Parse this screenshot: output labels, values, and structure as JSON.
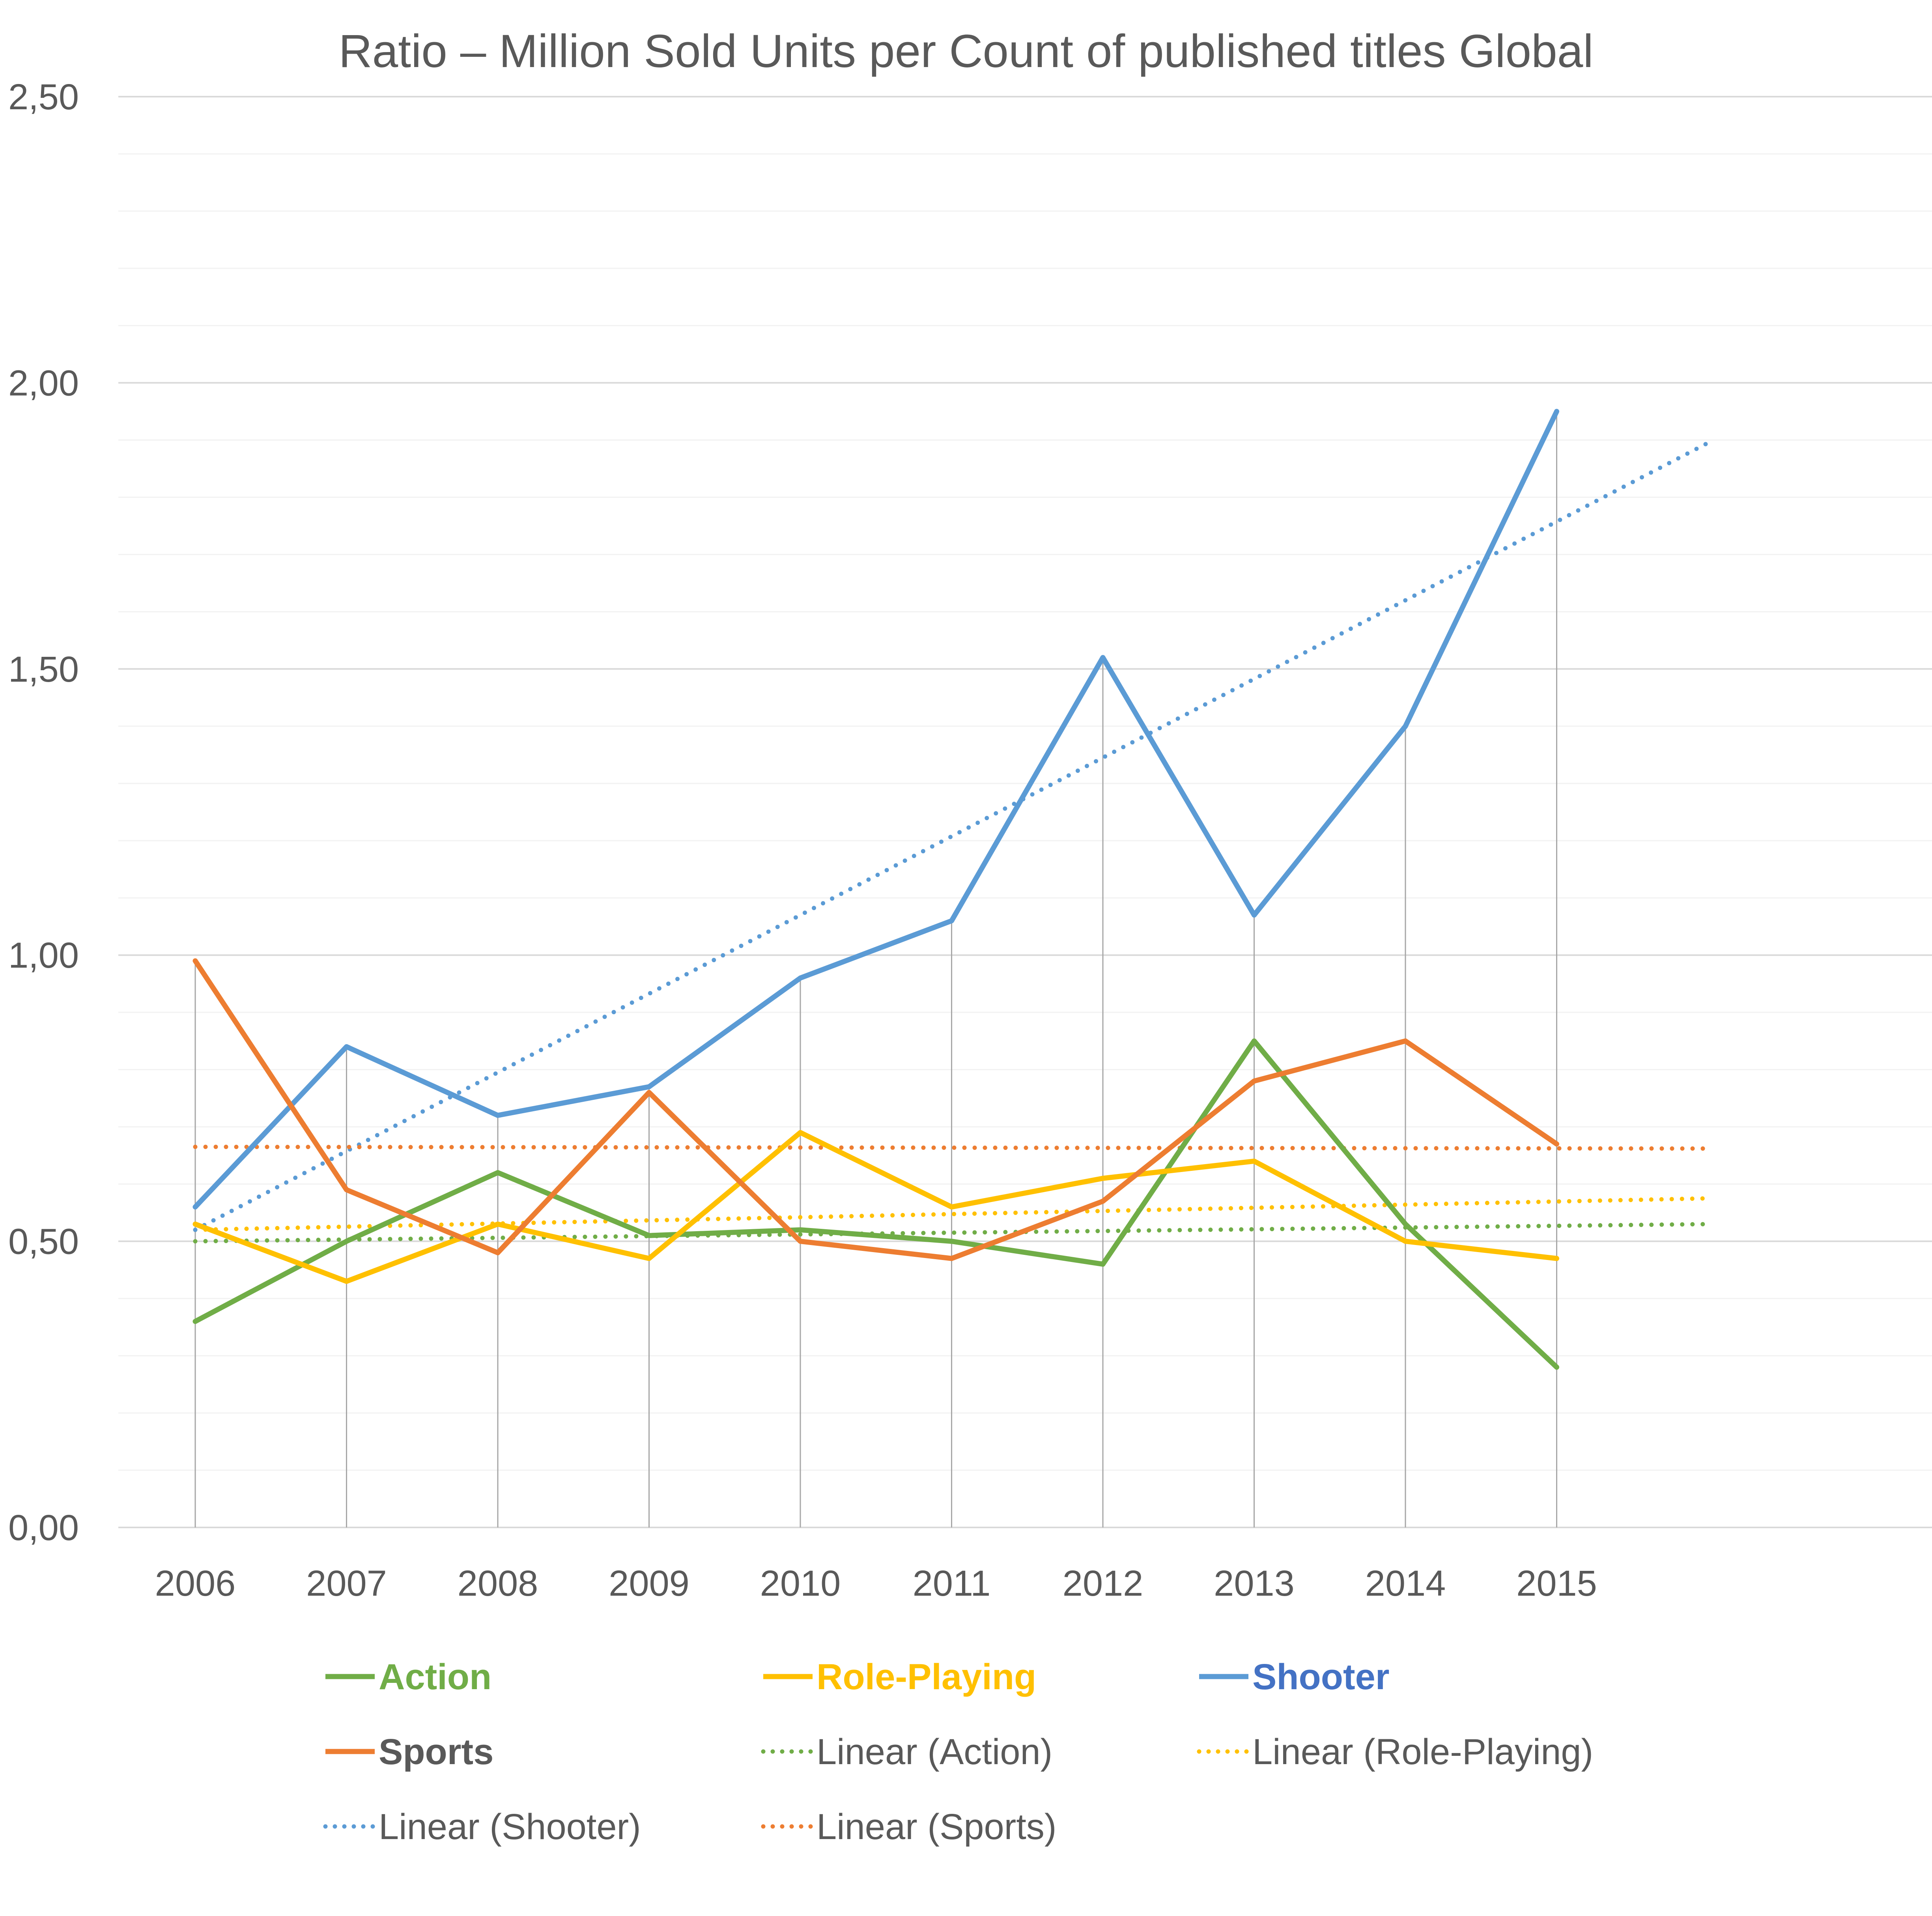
{
  "chart_data": {
    "type": "line",
    "title": "Ratio – Million Sold Units per Count of published titles Global",
    "xlabel": "",
    "ylabel": "",
    "ylim": [
      0,
      2.5
    ],
    "y_ticks": [
      "0,00",
      "0,50",
      "1,00",
      "1,50",
      "2,00",
      "2,50"
    ],
    "y_tick_values": [
      0,
      0.5,
      1.0,
      1.5,
      2.0,
      2.5
    ],
    "categories": [
      "2006",
      "2007",
      "2008",
      "2009",
      "2010",
      "2011",
      "2012",
      "2013",
      "2014",
      "2015"
    ],
    "grid": "horizontal major and minor, vertical drop lines",
    "legend_position": "bottom",
    "series": [
      {
        "name": "Action",
        "color": "#70ad47",
        "values": [
          0.36,
          0.5,
          0.62,
          0.51,
          0.52,
          0.5,
          0.46,
          0.85,
          0.53,
          0.28
        ]
      },
      {
        "name": "Role-Playing",
        "color": "#ffc000",
        "values": [
          0.53,
          0.43,
          0.53,
          0.47,
          0.69,
          0.56,
          0.61,
          0.64,
          0.5,
          0.47
        ]
      },
      {
        "name": "Shooter",
        "color": "#5b9bd5",
        "values": [
          0.56,
          0.84,
          0.72,
          0.77,
          0.96,
          1.06,
          1.52,
          1.07,
          1.4,
          1.95
        ]
      },
      {
        "name": "Sports",
        "color": "#ed7d31",
        "values": [
          0.99,
          0.59,
          0.48,
          0.76,
          0.5,
          0.47,
          0.57,
          0.78,
          0.85,
          0.67
        ]
      }
    ],
    "trendlines": [
      {
        "name": "Linear (Action)",
        "color": "#70ad47",
        "start": 0.5,
        "end": 0.53
      },
      {
        "name": "Linear (Role-Playing)",
        "color": "#ffc000",
        "start": 0.52,
        "end": 0.575
      },
      {
        "name": "Linear (Shooter)",
        "color": "#5b9bd5",
        "start": 0.52,
        "end": 1.895
      },
      {
        "name": "Linear (Sports)",
        "color": "#ed7d31",
        "start": 0.665,
        "end": 0.662
      }
    ],
    "legend": [
      {
        "label": "Action",
        "color": "#70ad47",
        "style": "solid",
        "text_color": "#70ad47",
        "bold": true
      },
      {
        "label": "Role-Playing",
        "color": "#ffc000",
        "style": "solid",
        "text_color": "#ffc000",
        "bold": true
      },
      {
        "label": "Shooter",
        "color": "#5b9bd5",
        "style": "solid",
        "text_color": "#4472c4",
        "bold": true
      },
      {
        "label": "Sports",
        "color": "#ed7d31",
        "style": "solid",
        "text_color": "#595959",
        "bold": true
      },
      {
        "label": "Linear (Action)",
        "color": "#70ad47",
        "style": "dotted",
        "text_color": "#595959",
        "bold": false
      },
      {
        "label": "Linear (Role-Playing)",
        "color": "#ffc000",
        "style": "dotted",
        "text_color": "#595959",
        "bold": false
      },
      {
        "label": "Linear (Shooter)",
        "color": "#5b9bd5",
        "style": "dotted",
        "text_color": "#595959",
        "bold": false
      },
      {
        "label": "Linear (Sports)",
        "color": "#ed7d31",
        "style": "dotted",
        "text_color": "#595959",
        "bold": false
      }
    ]
  }
}
